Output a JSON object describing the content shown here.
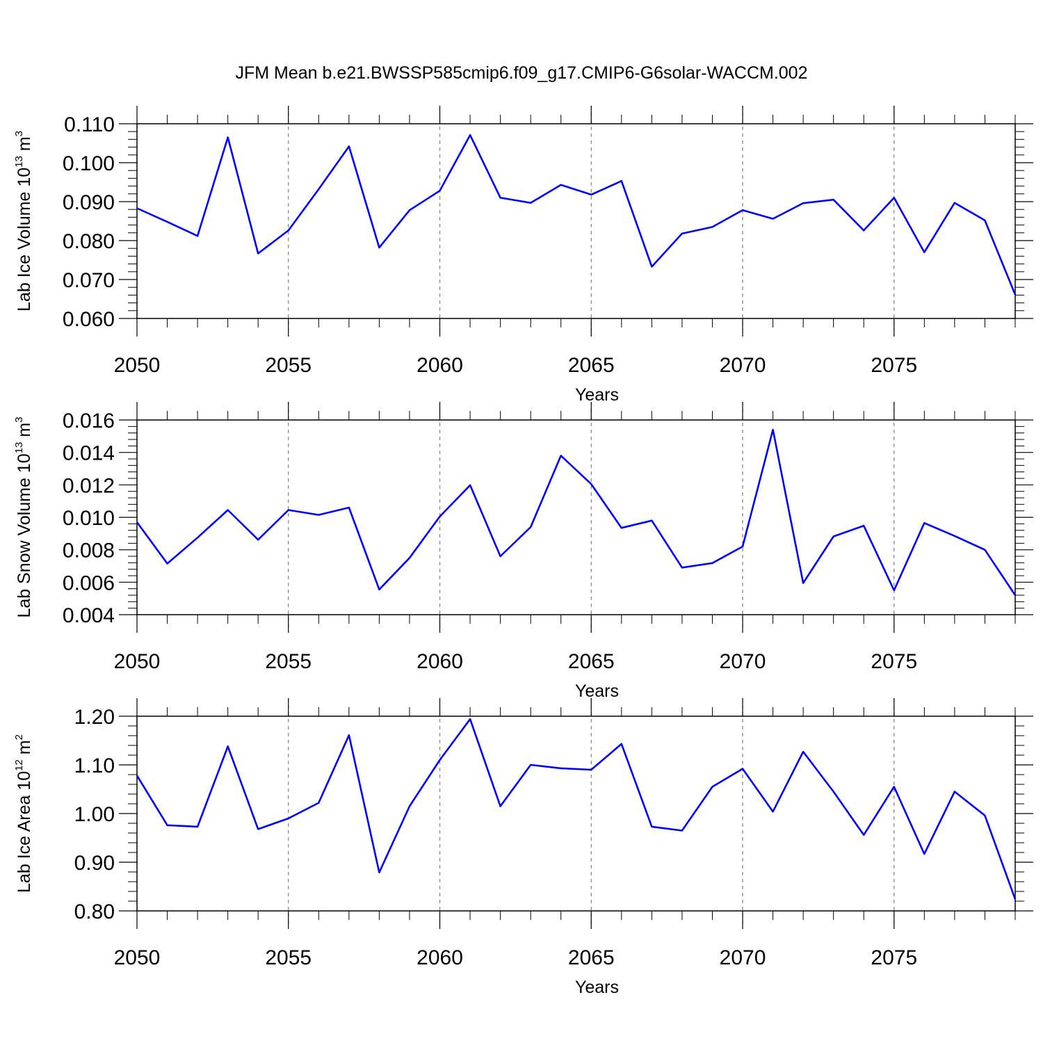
{
  "figure_title": "JFM Mean b.e21.BWSSP585cmip6.f09_g17.CMIP6-G6solar-WACCM.002",
  "colors": {
    "line": "#0000ff",
    "frame": "#000000",
    "grid": "#808080"
  },
  "chart_data": [
    {
      "type": "line",
      "title": "JFM Mean b.e21.BWSSP585cmip6.f09_g17.CMIP6-G6solar-WACCM.002",
      "ylabel_main": "Lab Ice Volume 10",
      "ylabel_exp": "13",
      "ylabel_unit": " m",
      "ylabel_unit_exp": "3",
      "xlabel": "Years",
      "xlim": [
        2050,
        2079
      ],
      "ylim": [
        0.06,
        0.11
      ],
      "xticks": [
        2050,
        2055,
        2060,
        2065,
        2070,
        2075
      ],
      "xtick_labels": [
        "2050",
        "2055",
        "2060",
        "2065",
        "2070",
        "2075"
      ],
      "yticks": [
        0.06,
        0.07,
        0.08,
        0.09,
        0.1,
        0.11
      ],
      "ytick_labels": [
        "0.060",
        "0.070",
        "0.080",
        "0.090",
        "0.100",
        "0.110"
      ],
      "grid": "vertical dashed at major x ticks",
      "x": [
        2050,
        2051,
        2052,
        2053,
        2054,
        2055,
        2056,
        2057,
        2058,
        2059,
        2060,
        2061,
        2062,
        2063,
        2064,
        2065,
        2066,
        2067,
        2068,
        2069,
        2070,
        2071,
        2072,
        2073,
        2074,
        2075,
        2076,
        2077,
        2078,
        2079
      ],
      "series": [
        {
          "name": "Lab Ice Volume",
          "values": [
            0.0883,
            0.0848,
            0.0812,
            0.1065,
            0.0767,
            0.0826,
            0.0932,
            0.1042,
            0.0782,
            0.0878,
            0.0928,
            0.1071,
            0.091,
            0.0897,
            0.0943,
            0.0918,
            0.0953,
            0.0733,
            0.0818,
            0.0835,
            0.0878,
            0.0856,
            0.0896,
            0.0905,
            0.0826,
            0.091,
            0.077,
            0.0897,
            0.0852,
            0.0661
          ]
        }
      ]
    },
    {
      "type": "line",
      "ylabel_main": "Lab Snow Volume 10",
      "ylabel_exp": "13",
      "ylabel_unit": " m",
      "ylabel_unit_exp": "3",
      "xlabel": "Years",
      "xlim": [
        2050,
        2079
      ],
      "ylim": [
        0.004,
        0.016
      ],
      "xticks": [
        2050,
        2055,
        2060,
        2065,
        2070,
        2075
      ],
      "xtick_labels": [
        "2050",
        "2055",
        "2060",
        "2065",
        "2070",
        "2075"
      ],
      "yticks": [
        0.004,
        0.006,
        0.008,
        0.01,
        0.012,
        0.014,
        0.016
      ],
      "ytick_labels": [
        "0.004",
        "0.006",
        "0.008",
        "0.010",
        "0.012",
        "0.014",
        "0.016"
      ],
      "grid": "vertical dashed at major x ticks",
      "x": [
        2050,
        2051,
        2052,
        2053,
        2054,
        2055,
        2056,
        2057,
        2058,
        2059,
        2060,
        2061,
        2062,
        2063,
        2064,
        2065,
        2066,
        2067,
        2068,
        2069,
        2070,
        2071,
        2072,
        2073,
        2074,
        2075,
        2076,
        2077,
        2078,
        2079
      ],
      "series": [
        {
          "name": "Lab Snow Volume",
          "values": [
            0.0097,
            0.00715,
            0.00875,
            0.01045,
            0.00862,
            0.01045,
            0.01015,
            0.0106,
            0.00555,
            0.0075,
            0.01005,
            0.01198,
            0.0076,
            0.0094,
            0.0138,
            0.01205,
            0.00935,
            0.0098,
            0.0069,
            0.00718,
            0.0082,
            0.0154,
            0.00595,
            0.00882,
            0.00948,
            0.0055,
            0.00965,
            0.00885,
            0.008,
            0.0052
          ]
        }
      ]
    },
    {
      "type": "line",
      "ylabel_main": "Lab Ice Area 10",
      "ylabel_exp": "12",
      "ylabel_unit": " m",
      "ylabel_unit_exp": "2",
      "xlabel": "Years",
      "xlim": [
        2050,
        2079
      ],
      "ylim": [
        0.8,
        1.2
      ],
      "xticks": [
        2050,
        2055,
        2060,
        2065,
        2070,
        2075
      ],
      "xtick_labels": [
        "2050",
        "2055",
        "2060",
        "2065",
        "2070",
        "2075"
      ],
      "yticks": [
        0.8,
        0.9,
        1.0,
        1.1,
        1.2
      ],
      "ytick_labels": [
        "0.80",
        "0.90",
        "1.00",
        "1.10",
        "1.20"
      ],
      "grid": "vertical dashed at major x ticks",
      "x": [
        2050,
        2051,
        2052,
        2053,
        2054,
        2055,
        2056,
        2057,
        2058,
        2059,
        2060,
        2061,
        2062,
        2063,
        2064,
        2065,
        2066,
        2067,
        2068,
        2069,
        2070,
        2071,
        2072,
        2073,
        2074,
        2075,
        2076,
        2077,
        2078,
        2079
      ],
      "series": [
        {
          "name": "Lab Ice Area",
          "values": [
            1.078,
            0.976,
            0.973,
            1.138,
            0.968,
            0.99,
            1.022,
            1.161,
            0.879,
            1.015,
            1.11,
            1.194,
            1.015,
            1.1,
            1.093,
            1.09,
            1.143,
            0.973,
            0.965,
            1.055,
            1.092,
            1.004,
            1.127,
            1.045,
            0.956,
            1.055,
            0.917,
            1.045,
            0.996,
            0.824
          ]
        }
      ]
    }
  ]
}
